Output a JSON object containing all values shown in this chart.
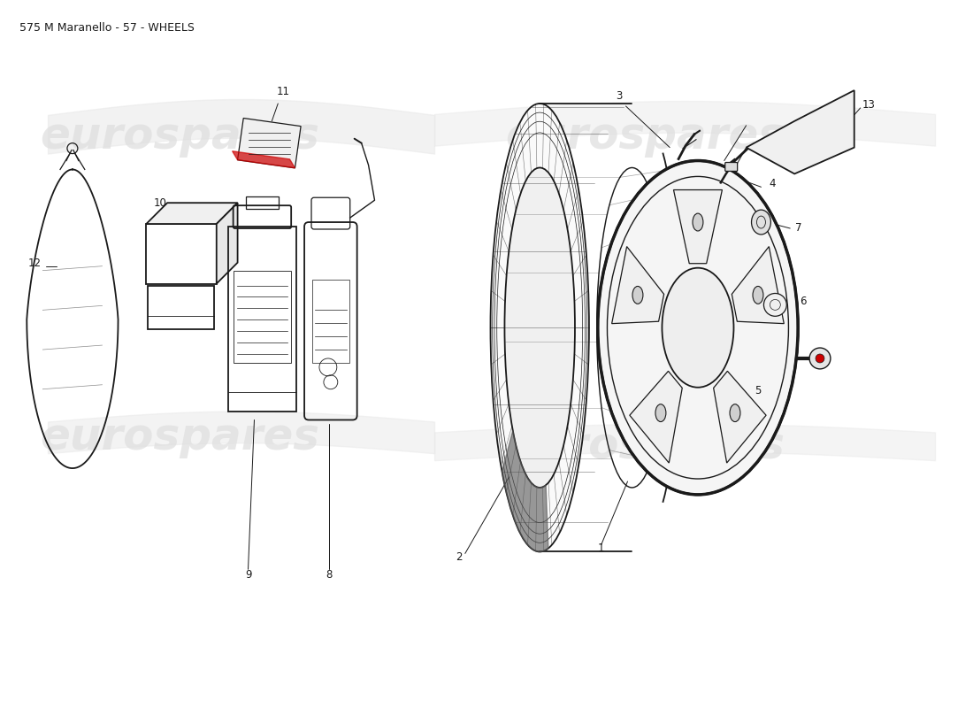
{
  "title": "575 M Maranello - 57 - WHEELS",
  "background_color": "#ffffff",
  "line_color": "#1a1a1a",
  "watermark_text": "eurospares",
  "watermark_color": "#dedede",
  "label_fontsize": 8.5
}
